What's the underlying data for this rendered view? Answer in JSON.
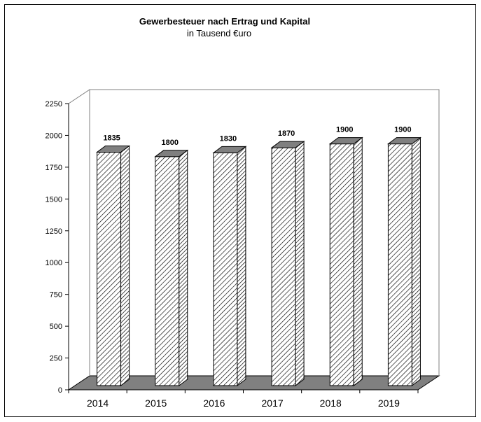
{
  "chart_data": {
    "type": "bar",
    "title": "Gewerbesteuer nach Ertrag und Kapital",
    "subtitle": "in Tausend €uro",
    "categories": [
      "2014",
      "2015",
      "2016",
      "2017",
      "2018",
      "2019"
    ],
    "values": [
      1835,
      1800,
      1830,
      1870,
      1900,
      1900
    ],
    "data_labels": [
      "1835",
      "1800",
      "1830",
      "1870",
      "1900",
      "1900"
    ],
    "yticks": [
      "0",
      "250",
      "500",
      "750",
      "1000",
      "1250",
      "1500",
      "1750",
      "2000",
      "2250"
    ],
    "ylim": [
      0,
      2250
    ],
    "grid": false,
    "legend": "none",
    "style": "3d-hatched",
    "colors": {
      "floor": "#808080",
      "bar_fill": "#ffffff",
      "hatch": "#000000"
    }
  }
}
